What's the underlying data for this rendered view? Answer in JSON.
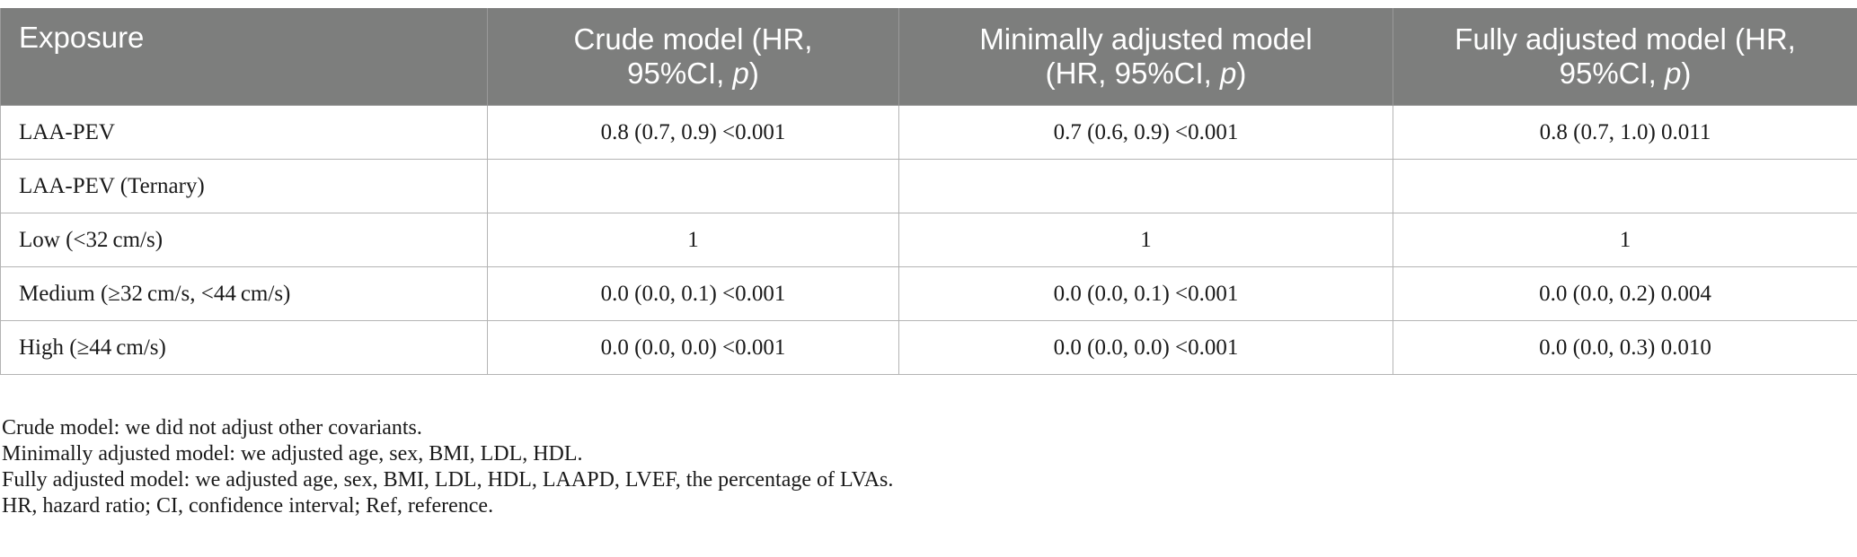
{
  "table": {
    "headers": [
      {
        "text": "Exposure"
      },
      {
        "line1": "Crude model (HR,",
        "line2a": "95%CI, ",
        "line2b": "p",
        "line2c": ")"
      },
      {
        "line1": "Minimally adjusted model",
        "line2a": "(HR, 95%CI, ",
        "line2b": "p",
        "line2c": ")"
      },
      {
        "line1": "Fully adjusted model (HR,",
        "line2a": "95%CI, ",
        "line2b": "p",
        "line2c": ")"
      }
    ],
    "rows": [
      [
        "LAA-PEV",
        "0.8 (0.7, 0.9) <0.001",
        "0.7 (0.6, 0.9) <0.001",
        "0.8 (0.7, 1.0) 0.011"
      ],
      [
        "LAA-PEV (Ternary)",
        "",
        "",
        ""
      ],
      [
        "Low (<32 cm/s)",
        "1",
        "1",
        "1"
      ],
      [
        "Medium (≥32 cm/s, <44 cm/s)",
        "0.0 (0.0, 0.1) <0.001",
        "0.0 (0.0, 0.1) <0.001",
        "0.0 (0.0, 0.2) 0.004"
      ],
      [
        "High (≥44 cm/s)",
        "0.0 (0.0, 0.0) <0.001",
        "0.0 (0.0, 0.0) <0.001",
        "0.0 (0.0, 0.3) 0.010"
      ]
    ]
  },
  "notes": [
    "Crude model: we did not adjust other covariants.",
    "Minimally adjusted model: we adjusted age, sex, BMI, LDL, HDL.",
    "Fully adjusted model: we adjusted age, sex, BMI, LDL, HDL, LAAPD, LVEF, the percentage of LVAs.",
    "HR, hazard ratio; CI, confidence interval; Ref, reference."
  ],
  "colors": {
    "header_bg": "#7d7e7d",
    "header_text": "#ffffff",
    "grid": "#b4b4b4"
  }
}
